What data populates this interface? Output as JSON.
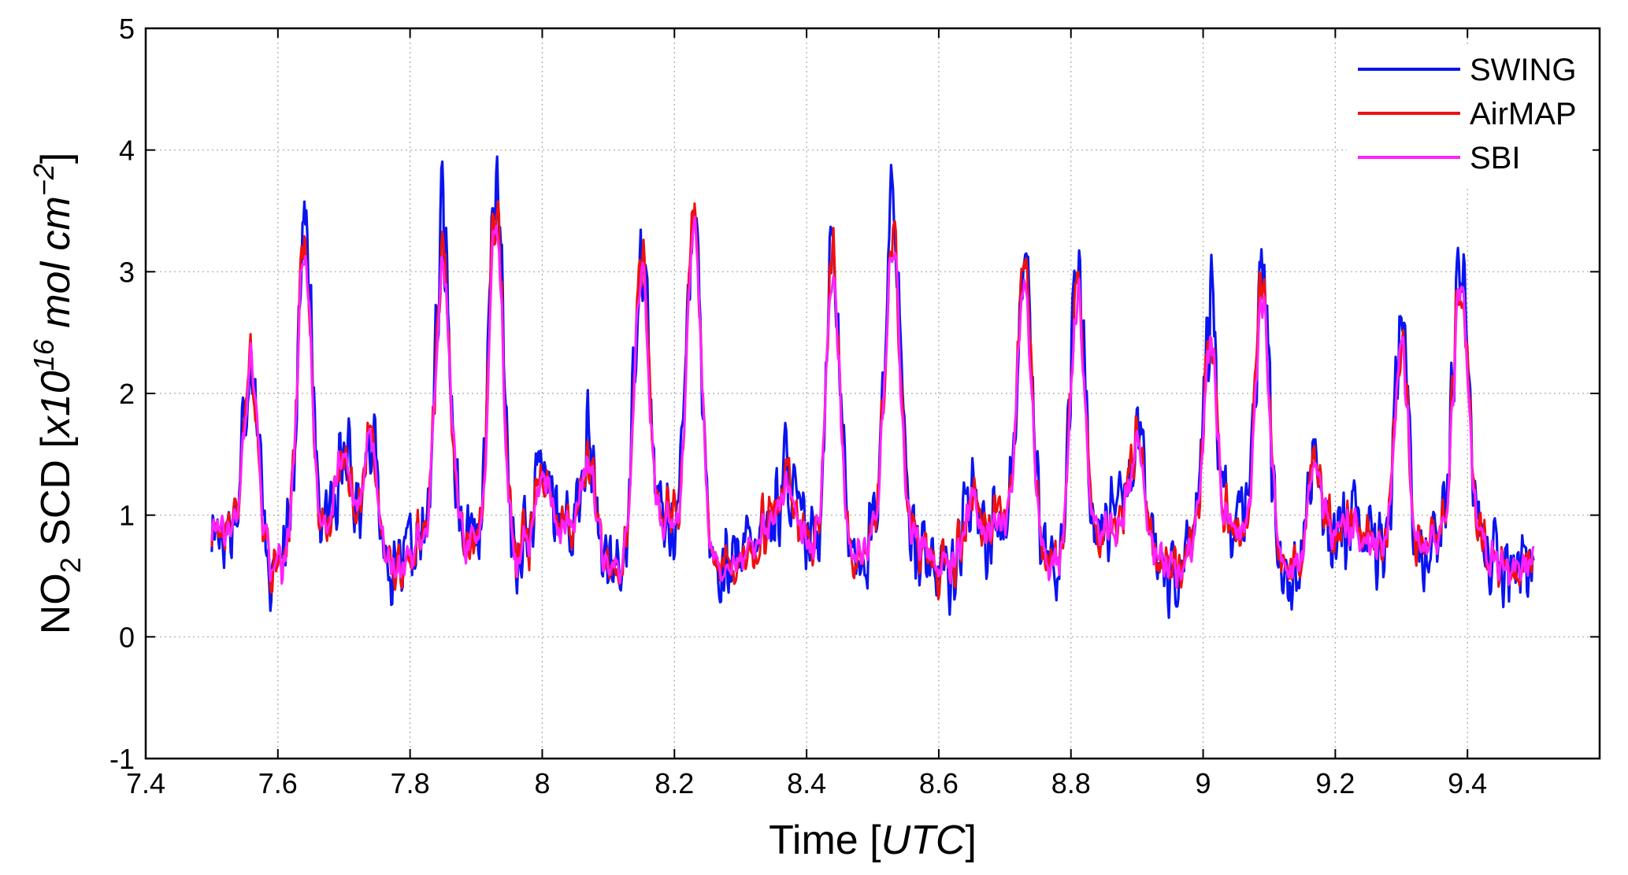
{
  "chart_data": {
    "type": "line",
    "title": "",
    "xlabel": {
      "text": "Time ",
      "bracket_open": "[",
      "unit": "UTC",
      "bracket_close": "]"
    },
    "ylabel": {
      "species": "NO",
      "subscript": "2",
      "rest": " SCD [",
      "mult": "x10",
      "exp": "16",
      "unit_a": " mol cm",
      "unit_exp": "−2",
      "close": "]"
    },
    "xlim": [
      7.4,
      9.6
    ],
    "ylim": [
      -1,
      5
    ],
    "x_ticks": [
      7.4,
      7.6,
      7.8,
      8,
      8.2,
      8.4,
      8.6,
      8.8,
      9,
      9.2,
      9.4
    ],
    "x_tick_labels": [
      "7.4",
      "7.6",
      "7.8",
      "8",
      "8.2",
      "8.4",
      "8.6",
      "8.8",
      "9",
      "9.2",
      "9.4"
    ],
    "y_ticks": [
      -1,
      0,
      1,
      2,
      3,
      4,
      5
    ],
    "y_tick_labels": [
      "-1",
      "0",
      "1",
      "2",
      "3",
      "4",
      "5"
    ],
    "grid": true,
    "legend": {
      "placement": "top-right"
    },
    "x_range": [
      7.5,
      9.5
    ],
    "baseline": 0.75,
    "peaks": [
      {
        "x": 7.56,
        "y": 2.4
      },
      {
        "x": 7.64,
        "y": 3.3
      },
      {
        "x": 7.7,
        "y": 1.4
      },
      {
        "x": 7.74,
        "y": 1.8
      },
      {
        "x": 7.85,
        "y": 3.0
      },
      {
        "x": 7.93,
        "y": 3.8
      },
      {
        "x": 8.0,
        "y": 1.2
      },
      {
        "x": 8.07,
        "y": 1.5
      },
      {
        "x": 8.15,
        "y": 3.2
      },
      {
        "x": 8.23,
        "y": 3.5
      },
      {
        "x": 8.37,
        "y": 1.1
      },
      {
        "x": 8.44,
        "y": 3.3
      },
      {
        "x": 8.53,
        "y": 3.2
      },
      {
        "x": 8.65,
        "y": 1.2
      },
      {
        "x": 8.73,
        "y": 2.9
      },
      {
        "x": 8.81,
        "y": 3.0
      },
      {
        "x": 8.9,
        "y": 1.5
      },
      {
        "x": 9.01,
        "y": 2.4
      },
      {
        "x": 9.09,
        "y": 2.9
      },
      {
        "x": 9.17,
        "y": 1.4
      },
      {
        "x": 9.3,
        "y": 2.6
      },
      {
        "x": 9.39,
        "y": 2.9
      }
    ],
    "series": [
      {
        "name": "SWING",
        "color": "#0a14f0",
        "noise": 0.42,
        "scale": 1.08,
        "seed": 17
      },
      {
        "name": "AirMAP",
        "color": "#f01010",
        "noise": 0.22,
        "scale": 1.0,
        "seed": 5
      },
      {
        "name": "SBI",
        "color": "#ff22ff",
        "noise": 0.09,
        "scale": 0.95,
        "seed": 29
      }
    ]
  }
}
